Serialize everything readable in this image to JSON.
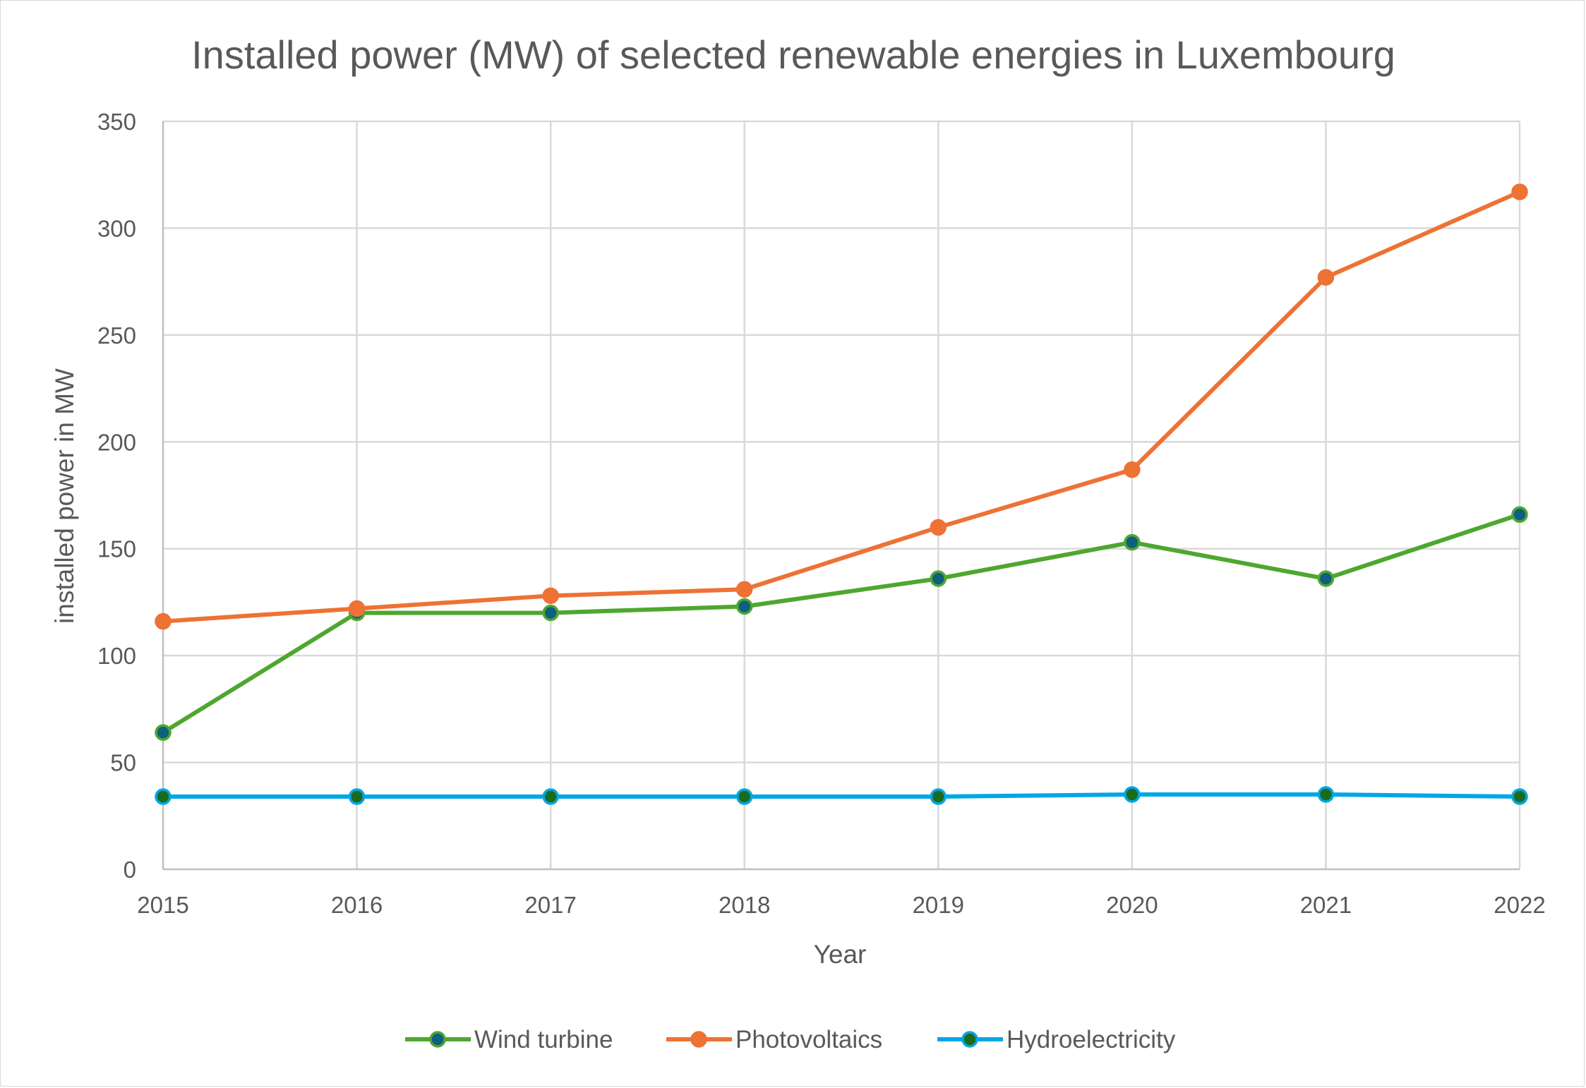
{
  "chart_data": {
    "type": "line",
    "title": "Installed power (MW)  of selected renewable energies in Luxembourg",
    "xlabel": "Year",
    "ylabel": "installed power in MW",
    "categories": [
      "2015",
      "2016",
      "2017",
      "2018",
      "2019",
      "2020",
      "2021",
      "2022"
    ],
    "ylim": [
      0,
      350
    ],
    "yticks": [
      "0",
      "50",
      "100",
      "150",
      "200",
      "250",
      "300",
      "350"
    ],
    "grid": true,
    "legend_position": "bottom",
    "series": [
      {
        "name": "Wind turbine",
        "values": [
          64,
          120,
          120,
          123,
          136,
          153,
          136,
          166
        ],
        "line_color": "#4ea72e",
        "marker_color": "#0f5f80"
      },
      {
        "name": "Photovoltaics",
        "values": [
          116,
          122,
          128,
          131,
          160,
          187,
          277,
          317
        ],
        "line_color": "#ed7234",
        "marker_color": "#ed7234"
      },
      {
        "name": "Hydroelectricity",
        "values": [
          34,
          34,
          34,
          34,
          34,
          35,
          35,
          34
        ],
        "line_color": "#00a7e6",
        "marker_color": "#1c6a1c"
      }
    ]
  }
}
